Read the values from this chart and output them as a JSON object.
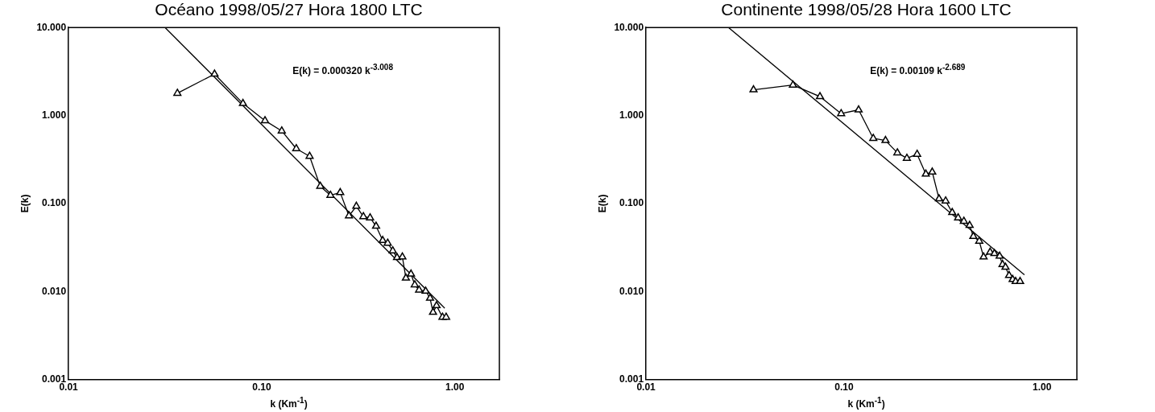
{
  "chart_data": [
    {
      "type": "line",
      "title": "Océano 1998/05/27  Hora 1800 LTC",
      "xlabel": "k (Km$^{-1}$)",
      "ylabel": "E(k)",
      "log": "xy",
      "xlim": [
        0.01,
        1.7
      ],
      "ylim": [
        0.001,
        10
      ],
      "xticks": [
        {
          "value": 0.01,
          "label": "0.01"
        },
        {
          "value": 0.1,
          "label": "0.10"
        },
        {
          "value": 1,
          "label": "1.00"
        }
      ],
      "yticks": [
        {
          "value": 0.001,
          "label": "0.001"
        },
        {
          "value": 0.01,
          "label": "0.010"
        },
        {
          "value": 0.1,
          "label": "0.100"
        },
        {
          "value": 1,
          "label": "1.000"
        },
        {
          "value": 10,
          "label": "10.000"
        }
      ],
      "grid": false,
      "legend": false,
      "annotations": [
        "E(k) = 0.000320 k$^{-3.008}$"
      ],
      "series": [
        {
          "color": "#000000",
          "marker": "triangle",
          "x": [
            0.0366,
            0.057,
            0.08,
            0.104,
            0.127,
            0.151,
            0.177,
            0.201,
            0.227,
            0.255,
            0.283,
            0.309,
            0.336,
            0.364,
            0.391,
            0.423,
            0.449,
            0.477,
            0.502,
            0.535,
            0.558,
            0.593,
            0.62,
            0.653,
            0.706,
            0.744,
            0.771,
            0.804,
            0.863,
            0.901
          ],
          "values": [
            1.79,
            2.96,
            1.37,
            0.875,
            0.668,
            0.42,
            0.344,
            0.157,
            0.124,
            0.133,
            0.0724,
            0.093,
            0.071,
            0.0687,
            0.0553,
            0.038,
            0.0354,
            0.029,
            0.0243,
            0.0247,
            0.0142,
            0.0158,
            0.0119,
            0.0104,
            0.0101,
            0.0084,
            0.0058,
            0.0069,
            0.0051,
            0.0051
          ]
        },
        {
          "type": "line",
          "color": "#000000",
          "marker": "none",
          "x": [
            0.0316,
            0.886
          ],
          "values": [
            10,
            0.00645
          ]
        }
      ]
    },
    {
      "type": "line",
      "title": "Continente 1998/05/28  Hora 1600 LTC",
      "xlabel": "k (Km$^{-1}$)",
      "ylabel": "E(k)",
      "log": "xy",
      "xlim": [
        0.01,
        1.5
      ],
      "ylim": [
        0.001,
        10
      ],
      "xticks": [
        {
          "value": 0.01,
          "label": "0.01"
        },
        {
          "value": 0.1,
          "label": "0.10"
        },
        {
          "value": 1,
          "label": "1.00"
        }
      ],
      "yticks": [
        {
          "value": 0.001,
          "label": "0.001"
        },
        {
          "value": 0.01,
          "label": "0.010"
        },
        {
          "value": 0.1,
          "label": "0.100"
        },
        {
          "value": 1,
          "label": "1.000"
        },
        {
          "value": 10,
          "label": "10.000"
        }
      ],
      "grid": false,
      "legend": false,
      "annotations": [
        "E(k) = 0.00109 k$^{-2.689}$"
      ],
      "series": [
        {
          "color": "#000000",
          "marker": "triangle",
          "x": [
            0.0349,
            0.0552,
            0.0756,
            0.0967,
            0.1185,
            0.1405,
            0.162,
            0.186,
            0.2077,
            0.234,
            0.259,
            0.279,
            0.302,
            0.326,
            0.352,
            0.377,
            0.403,
            0.431,
            0.45,
            0.482,
            0.507,
            0.547,
            0.575,
            0.611,
            0.632,
            0.654,
            0.682,
            0.711,
            0.736,
            0.775
          ],
          "values": [
            1.96,
            2.22,
            1.64,
            1.05,
            1.16,
            0.55,
            0.52,
            0.377,
            0.327,
            0.363,
            0.216,
            0.228,
            0.113,
            0.107,
            0.079,
            0.0687,
            0.0628,
            0.0564,
            0.0423,
            0.0373,
            0.0247,
            0.028,
            0.027,
            0.0252,
            0.0203,
            0.0189,
            0.0152,
            0.0137,
            0.013,
            0.013
          ]
        },
        {
          "type": "line",
          "color": "#000000",
          "marker": "none",
          "x": [
            0.0261,
            0.815
          ],
          "values": [
            10,
            0.0155
          ]
        }
      ]
    }
  ]
}
